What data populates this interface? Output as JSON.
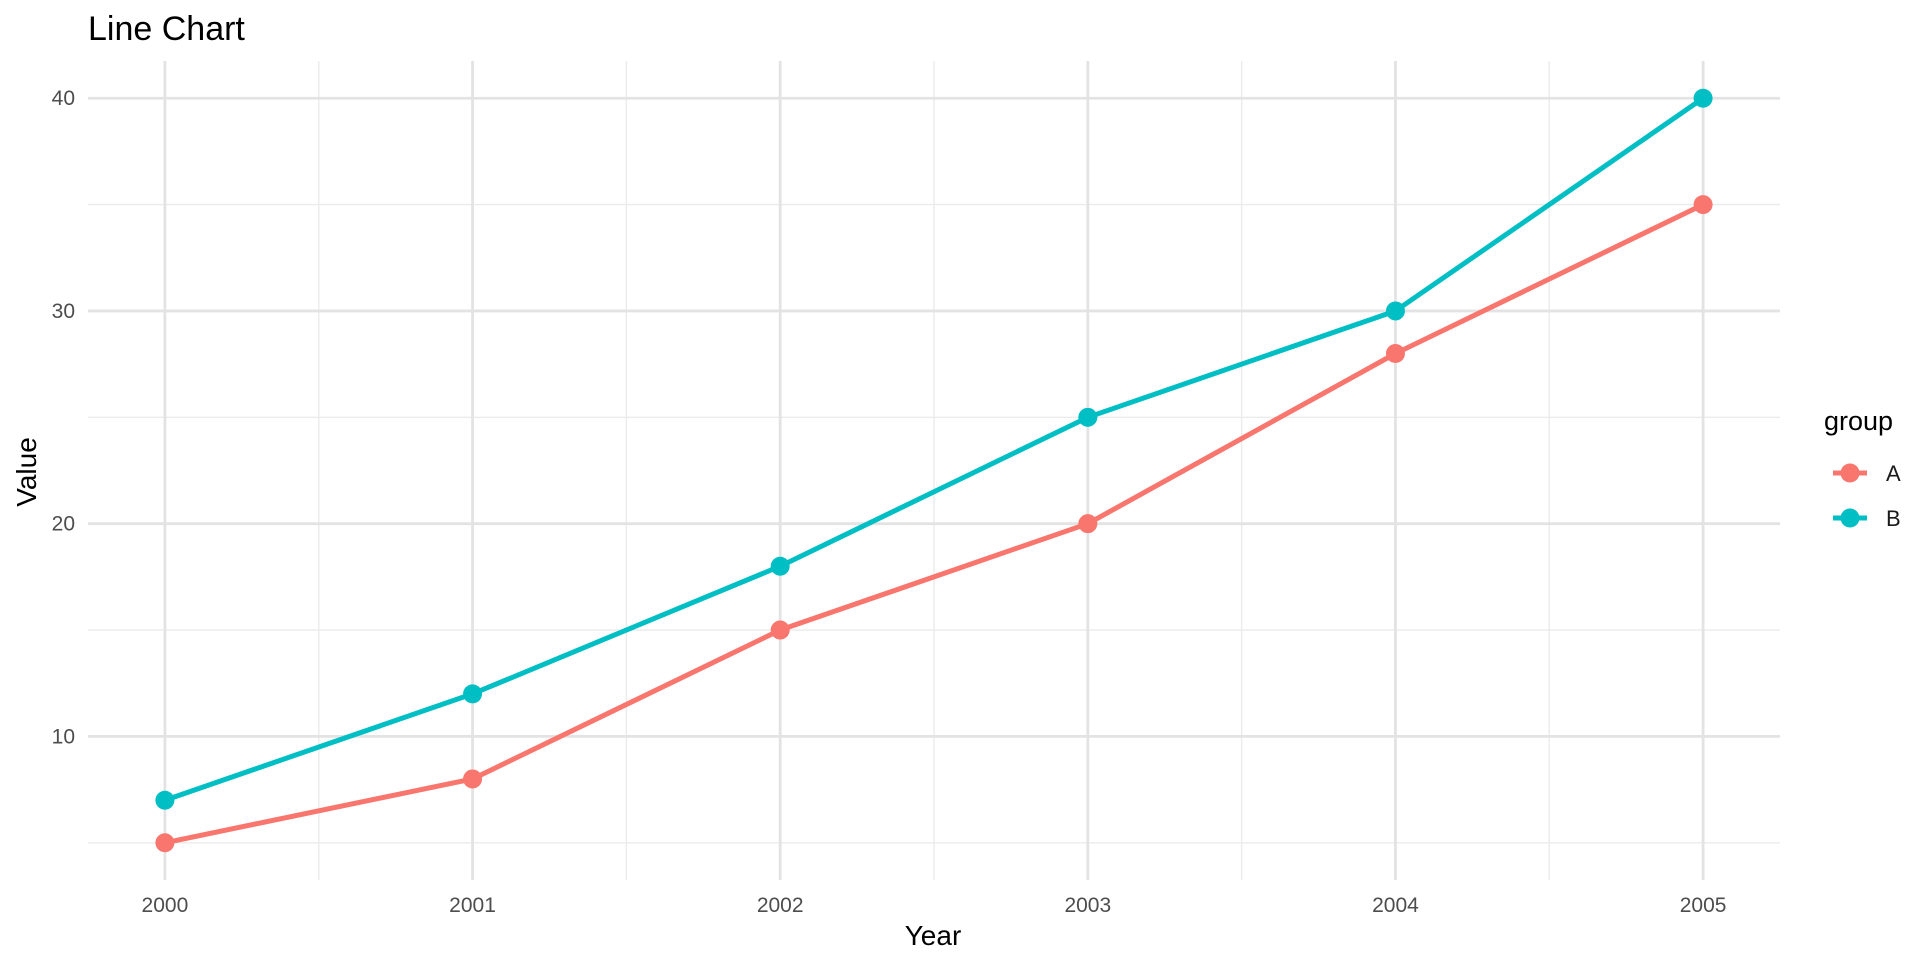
{
  "chart_data": {
    "type": "line",
    "title": "Line Chart",
    "xlabel": "Year",
    "ylabel": "Value",
    "x": [
      2000,
      2001,
      2002,
      2003,
      2004,
      2005
    ],
    "x_tick_labels": [
      "2000",
      "2001",
      "2002",
      "2003",
      "2004",
      "2005"
    ],
    "y_ticks": [
      10,
      20,
      30,
      40
    ],
    "y_tick_labels": [
      "10",
      "20",
      "30",
      "40"
    ],
    "xlim": [
      1999.75,
      2005.25
    ],
    "ylim": [
      3.25,
      41.75
    ],
    "grid": true,
    "legend": {
      "title": "group",
      "position": "right"
    },
    "series": [
      {
        "name": "A",
        "color": "#F8766D",
        "values": [
          5,
          8,
          15,
          20,
          28,
          35
        ]
      },
      {
        "name": "B",
        "color": "#00BFC4",
        "values": [
          7,
          12,
          18,
          25,
          30,
          40
        ]
      }
    ]
  }
}
